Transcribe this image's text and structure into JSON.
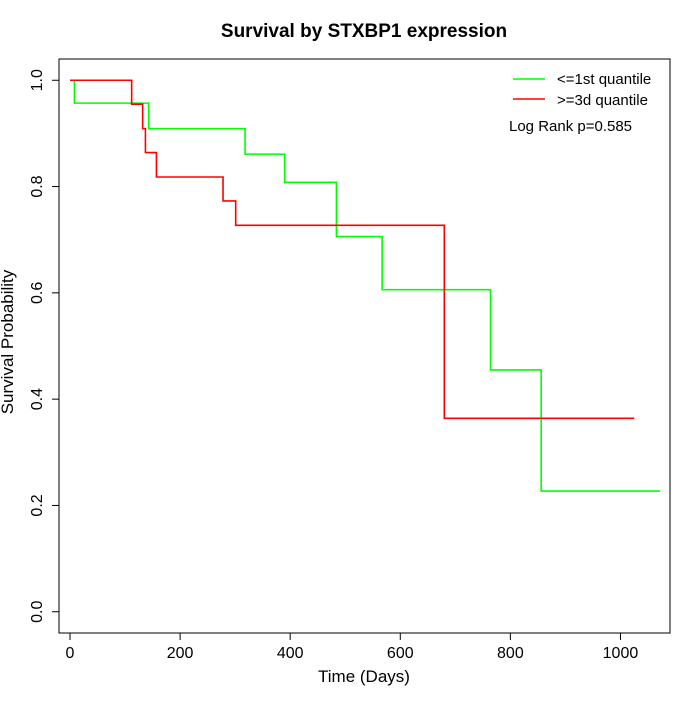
{
  "chart_data": {
    "type": "line",
    "title": "Survival by STXBP1 expression",
    "xlabel": "Time (Days)",
    "ylabel": "Survival Probability",
    "xlim": [
      -20,
      1090
    ],
    "ylim": [
      -0.04,
      1.04
    ],
    "x_ticks": [
      0,
      200,
      400,
      600,
      800,
      1000
    ],
    "y_ticks": [
      0.0,
      0.2,
      0.4,
      0.6,
      0.8,
      1.0
    ],
    "x_tick_labels": [
      "0",
      "200",
      "400",
      "600",
      "800",
      "1000"
    ],
    "y_tick_labels": [
      "0.0",
      "0.2",
      "0.4",
      "0.6",
      "0.8",
      "1.0"
    ],
    "grid": false,
    "legend_position": "top-right",
    "annotation": "Log Rank p=0.585",
    "series": [
      {
        "name": "<=1st quantile",
        "color": "#00ff00",
        "step": true,
        "x": [
          0,
          8,
          143,
          318,
          390,
          484,
          567,
          764,
          856,
          1072
        ],
        "y": [
          1.0,
          0.957,
          0.909,
          0.861,
          0.808,
          0.706,
          0.606,
          0.455,
          0.227,
          0.227
        ]
      },
      {
        "name": ">=3d quantile",
        "color": "#ff0000",
        "step": true,
        "x": [
          0,
          112,
          132,
          137,
          157,
          278,
          301,
          680,
          1025
        ],
        "y": [
          1.0,
          0.955,
          0.909,
          0.864,
          0.818,
          0.773,
          0.727,
          0.364,
          0.364
        ]
      }
    ]
  }
}
